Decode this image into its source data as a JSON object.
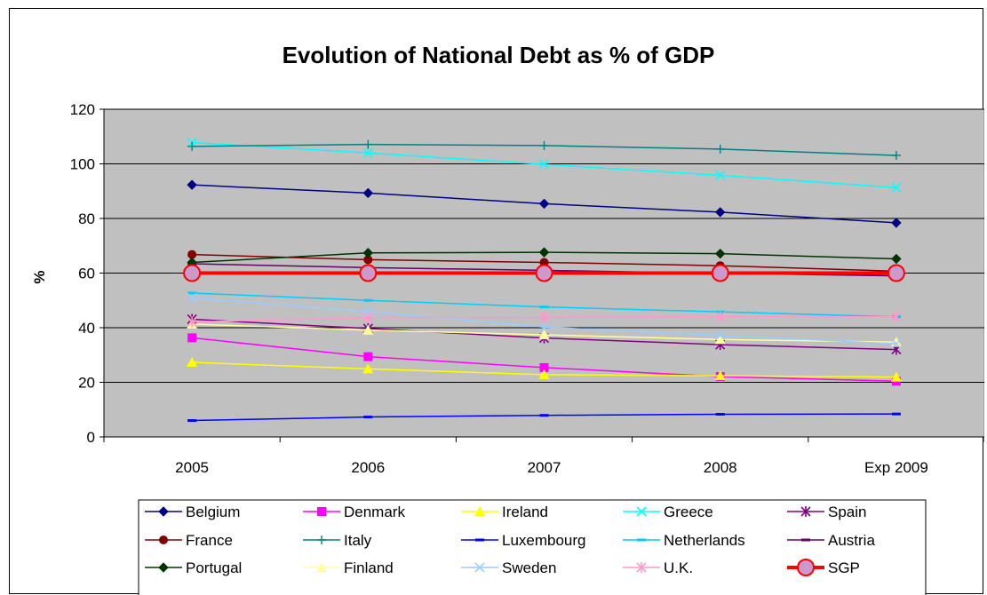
{
  "chart_data": {
    "type": "line",
    "title": "Evolution of National Debt as % of GDP",
    "xlabel": "",
    "ylabel": "%",
    "ylim": [
      0,
      120
    ],
    "yticks": [
      "0",
      "20",
      "40",
      "60",
      "80",
      "100",
      "120"
    ],
    "categories": [
      "2005",
      "2006",
      "2007",
      "2008",
      "Exp 2009"
    ],
    "grid": "horizontal",
    "legend_position": "bottom",
    "plot_background": "#c0c0c0",
    "series": [
      {
        "name": "Belgium",
        "values": [
          92.3,
          89.3,
          85.4,
          82.3,
          78.4
        ],
        "color": "#000080",
        "marker": "diamond"
      },
      {
        "name": "Denmark",
        "values": [
          36.3,
          29.4,
          25.4,
          22.1,
          20.4
        ],
        "color": "#ff00ff",
        "marker": "square"
      },
      {
        "name": "Ireland",
        "values": [
          27.3,
          24.9,
          22.8,
          22.4,
          21.9
        ],
        "color": "#ffff00",
        "marker": "triangle"
      },
      {
        "name": "Greece",
        "values": [
          107.8,
          104.0,
          99.8,
          95.8,
          91.3
        ],
        "color": "#00ffff",
        "marker": "x"
      },
      {
        "name": "Spain",
        "values": [
          43.1,
          39.7,
          36.2,
          33.8,
          32.0
        ],
        "color": "#800080",
        "marker": "star"
      },
      {
        "name": "France",
        "values": [
          66.8,
          64.9,
          63.9,
          62.7,
          60.7
        ],
        "color": "#800000",
        "marker": "circle"
      },
      {
        "name": "Italy",
        "values": [
          106.4,
          107.1,
          106.7,
          105.4,
          103.1
        ],
        "color": "#008080",
        "marker": "plus"
      },
      {
        "name": "Luxembourg",
        "values": [
          6.0,
          7.3,
          7.9,
          8.3,
          8.4
        ],
        "color": "#0000ff",
        "marker": "dash"
      },
      {
        "name": "Netherlands",
        "values": [
          52.7,
          50.0,
          47.6,
          45.8,
          44.0
        ],
        "color": "#00ccff",
        "marker": "dash"
      },
      {
        "name": "Austria",
        "values": [
          63.4,
          62.0,
          61.0,
          59.9,
          59.0
        ],
        "color": "#660066",
        "marker": "dash"
      },
      {
        "name": "Portugal",
        "values": [
          63.9,
          67.4,
          67.6,
          67.1,
          65.2
        ],
        "color": "#003300",
        "marker": "diamond"
      },
      {
        "name": "Finland",
        "values": [
          41.3,
          39.1,
          37.4,
          35.7,
          34.7
        ],
        "color": "#ffff99",
        "marker": "triangle"
      },
      {
        "name": "Sweden",
        "values": [
          50.9,
          45.9,
          40.2,
          37.2,
          34.1
        ],
        "color": "#99ccff",
        "marker": "x"
      },
      {
        "name": "U.K.",
        "values": [
          42.1,
          43.7,
          43.8,
          44.1,
          44.0
        ],
        "color": "#ff99cc",
        "marker": "star"
      },
      {
        "name": "SGP",
        "values": [
          60,
          60,
          60,
          60,
          60
        ],
        "color": "#ff0000",
        "marker": "big-circle",
        "marker_fill": "#cc99cc"
      }
    ]
  }
}
